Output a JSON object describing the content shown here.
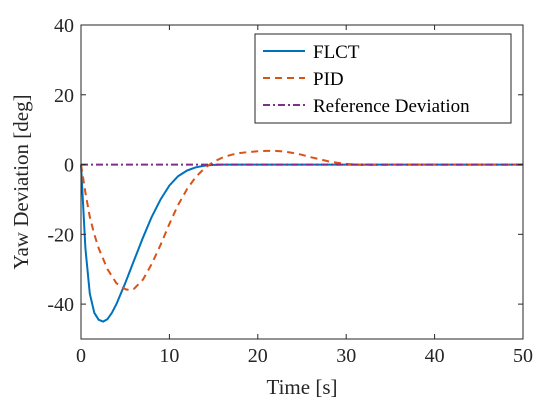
{
  "chart_data": {
    "type": "line",
    "xlabel": "Time [s]",
    "ylabel": "Yaw Deviation [deg]",
    "xlim": [
      0,
      50
    ],
    "ylim": [
      -50,
      40
    ],
    "xticks": [
      0,
      10,
      20,
      30,
      40,
      50
    ],
    "yticks": [
      -40,
      -20,
      0,
      20,
      40
    ],
    "xtick_labels": [
      "0",
      "10",
      "20",
      "30",
      "40",
      "50"
    ],
    "ytick_labels": [
      "-40",
      "-20",
      "0",
      "20",
      "40"
    ],
    "grid": false,
    "legend_position": "top-right",
    "series": [
      {
        "name": "FLCT",
        "color": "#0072BD",
        "style": "solid",
        "x": [
          0,
          0.5,
          1,
          1.5,
          2,
          2.5,
          3,
          3.5,
          4,
          5,
          6,
          7,
          8,
          9,
          10,
          11,
          12,
          13,
          14,
          15,
          16,
          17,
          18,
          20,
          25,
          30,
          35,
          40,
          45,
          50
        ],
        "y": [
          0,
          -24,
          -37,
          -42.5,
          -44.5,
          -45,
          -44.3,
          -42.5,
          -40,
          -34,
          -27.5,
          -21,
          -15,
          -10,
          -6,
          -3.3,
          -1.7,
          -0.8,
          -0.3,
          -0.1,
          0,
          0,
          0,
          0,
          0,
          0,
          0,
          0,
          0,
          0
        ]
      },
      {
        "name": "PID",
        "color": "#D95319",
        "style": "dashed",
        "x": [
          0,
          0.5,
          1,
          1.5,
          2,
          3,
          4,
          5,
          5.5,
          6,
          7,
          8,
          9,
          10,
          11,
          12,
          13,
          14,
          15,
          16,
          17,
          18,
          19,
          20,
          21,
          22,
          23,
          24,
          25,
          26,
          27,
          28,
          29,
          30,
          31,
          32,
          33,
          34,
          35,
          40,
          45,
          50
        ],
        "y": [
          0,
          -8,
          -15,
          -20,
          -24,
          -30,
          -34,
          -35.7,
          -36,
          -35.6,
          -33,
          -28.5,
          -23,
          -17,
          -11.5,
          -7,
          -3.5,
          -1,
          0.8,
          2.0,
          2.8,
          3.3,
          3.6,
          3.8,
          3.9,
          3.9,
          3.7,
          3.3,
          2.8,
          2.1,
          1.5,
          0.9,
          0.5,
          0.2,
          0,
          -0.1,
          -0.1,
          -0.05,
          0,
          0,
          0,
          0
        ]
      },
      {
        "name": "Reference Deviation",
        "color": "#7E2F8E",
        "style": "dashdot",
        "x": [
          0,
          50
        ],
        "y": [
          0,
          0
        ]
      }
    ]
  }
}
